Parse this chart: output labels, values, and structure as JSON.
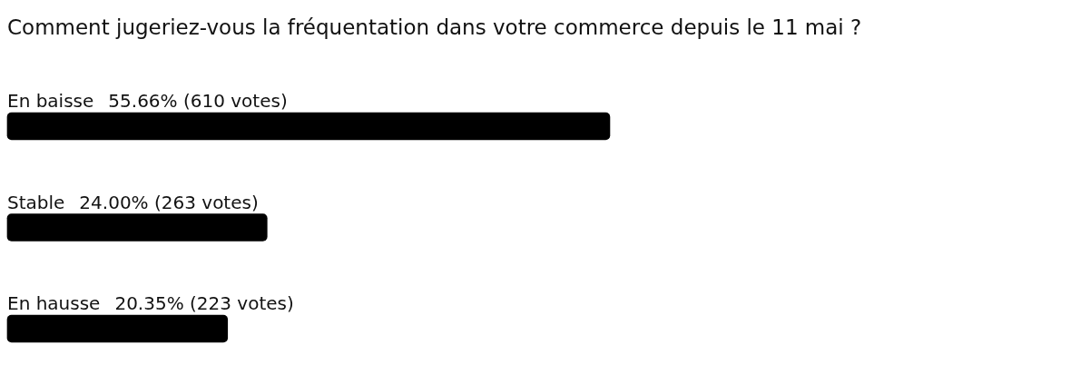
{
  "chart_data": {
    "type": "bar",
    "orientation": "horizontal",
    "title": "Comment jugeriez-vous la fréquentation dans votre commerce depuis le 11 mai ?",
    "categories": [
      "En baisse",
      "Stable",
      "En hausse"
    ],
    "values": [
      55.66,
      24.0,
      20.35
    ],
    "value_labels": [
      "55.66% (610 votes)",
      "24.00% (263 votes)",
      "20.35% (223 votes)"
    ],
    "color": "#000000",
    "tick_labels": "y"
  }
}
